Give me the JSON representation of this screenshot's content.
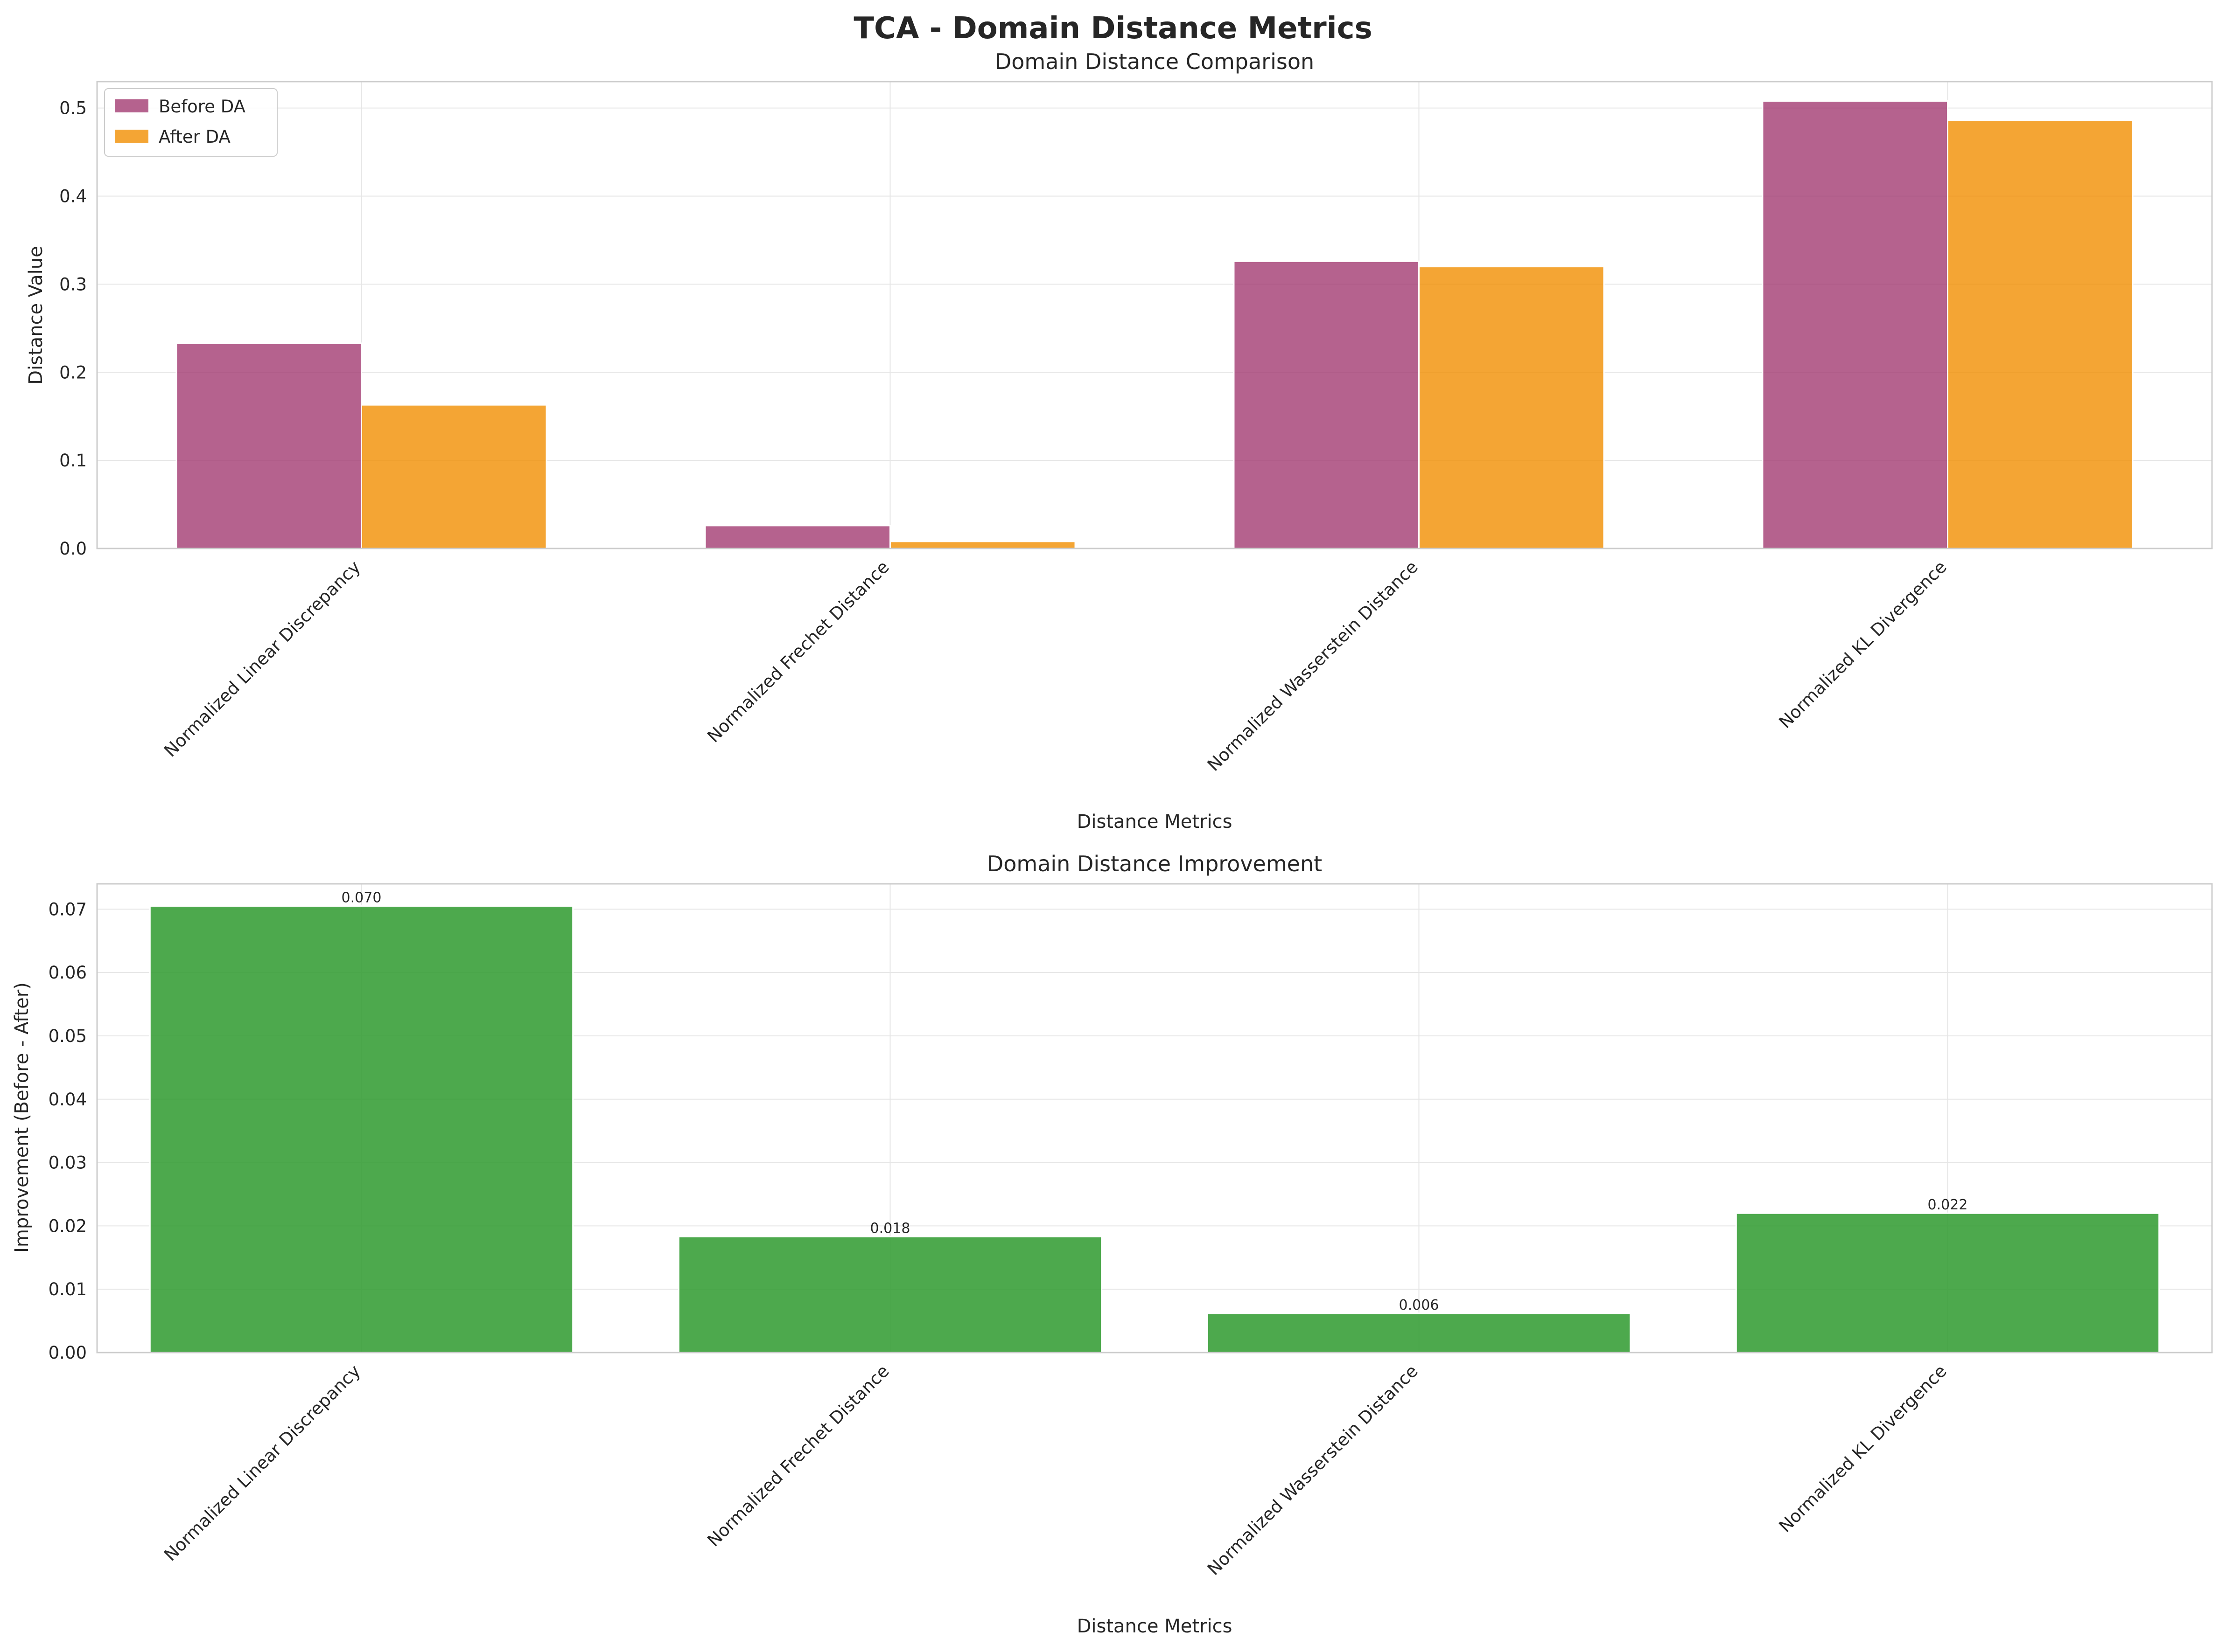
{
  "title": "TCA - Domain Distance Metrics",
  "colors": {
    "before": "#a23b72",
    "after": "#f18f01",
    "improvement": "#2e9a2e",
    "grid": "#e6e6e6",
    "spine": "#cccccc",
    "zero_line": "#999999"
  },
  "chart_data": [
    {
      "type": "bar",
      "title": "Domain Distance Comparison",
      "xlabel": "Distance Metrics",
      "ylabel": "Distance Value",
      "categories": [
        "Normalized Linear Discrepancy",
        "Normalized Frechet Distance",
        "Normalized Wasserstein Distance",
        "Normalized KL Divergence"
      ],
      "series": [
        {
          "name": "Before DA",
          "values": [
            0.233,
            0.026,
            0.326,
            0.508
          ]
        },
        {
          "name": "After DA",
          "values": [
            0.163,
            0.008,
            0.32,
            0.486
          ]
        }
      ],
      "ylim": [
        0,
        0.53
      ],
      "yticks": [
        "0.0",
        "0.1",
        "0.2",
        "0.3",
        "0.4",
        "0.5"
      ],
      "grid": true,
      "legend_position": "top-left"
    },
    {
      "type": "bar",
      "title": "Domain Distance Improvement",
      "xlabel": "Distance Metrics",
      "ylabel": "Improvement (Before - After)",
      "categories": [
        "Normalized Linear Discrepancy",
        "Normalized Frechet Distance",
        "Normalized Wasserstein Distance",
        "Normalized KL Divergence"
      ],
      "values": [
        0.0705,
        0.0183,
        0.0062,
        0.022
      ],
      "data_labels": [
        "0.070",
        "0.018",
        "0.006",
        "0.022"
      ],
      "ylim": [
        0,
        0.074
      ],
      "yticks": [
        "0.00",
        "0.01",
        "0.02",
        "0.03",
        "0.04",
        "0.05",
        "0.06",
        "0.07"
      ],
      "grid": true,
      "reference_line_y": 0
    }
  ]
}
